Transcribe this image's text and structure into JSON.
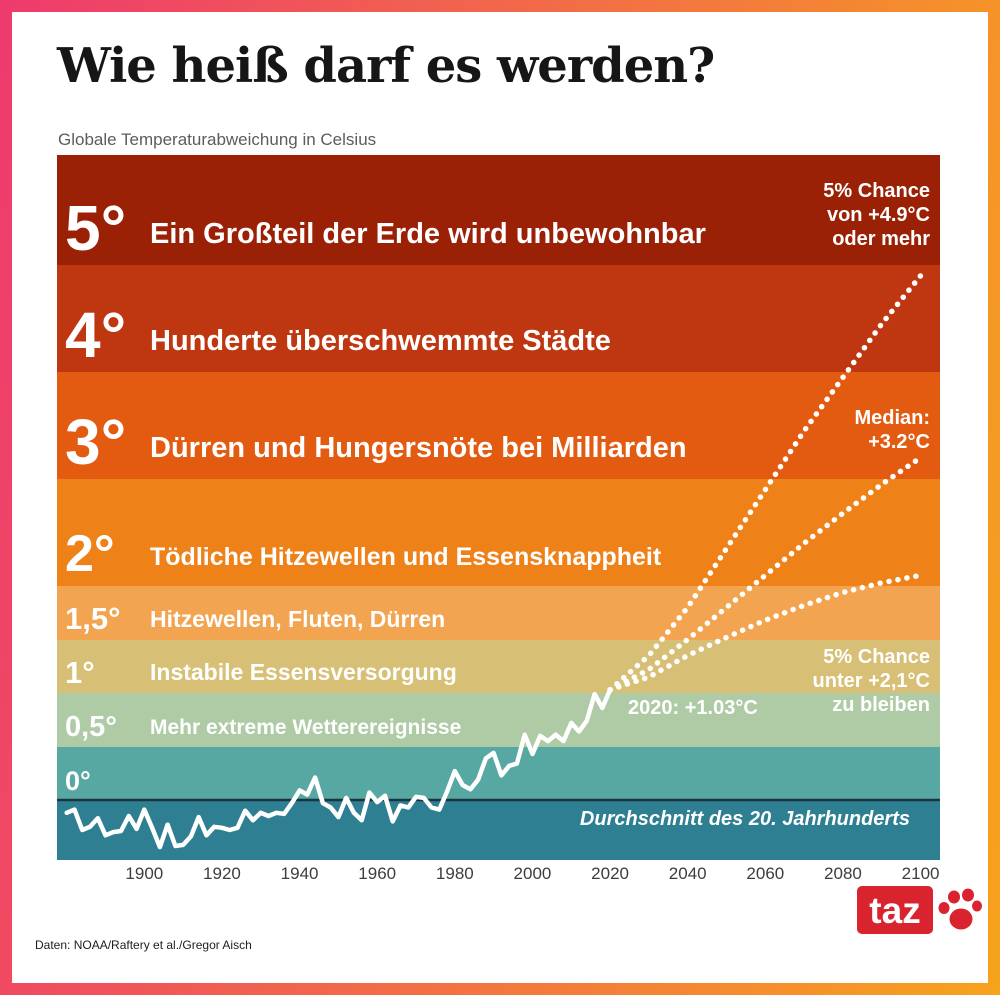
{
  "page": {
    "title": "Wie heiß darf es werden?",
    "subtitle": "Globale Temperaturabweichung in Celsius",
    "source": "Daten: NOAA/Raftery et al./Gregor Aisch",
    "frame_gradient": {
      "left": "#ee3a6e",
      "right": "#f7a31c"
    },
    "logo": {
      "text": "taz",
      "color": "#d9232e",
      "icon": "paw-icon"
    }
  },
  "chart_data": {
    "type": "line",
    "title": "Wie heiß darf es werden?",
    "subtitle": "Globale Temperaturabweichung in Celsius",
    "unit": "°C",
    "x_ticks": [
      1900,
      1920,
      1940,
      1960,
      1980,
      2000,
      2020,
      2040,
      2060,
      2080,
      2100
    ],
    "x_range": [
      1877.5,
      2105
    ],
    "y_range": [
      -0.57,
      6.1
    ],
    "grid": false,
    "legend": "none",
    "zero_line_label": "Durchschnitt des 20. Jahrhunderts",
    "zero_line_color": "#1b3440",
    "bands": [
      {
        "label": "5°",
        "text": "Ein Großteil der Erde wird unbewohnbar",
        "from": 5,
        "to": 6.1,
        "color": "#9B2106"
      },
      {
        "label": "4°",
        "text": "Hunderte überschwemmte Städte",
        "from": 4,
        "to": 5,
        "color": "#BF3710"
      },
      {
        "label": "3°",
        "text": "Dürren und Hungersnöte bei Milliarden",
        "from": 3,
        "to": 4,
        "color": "#E25B10"
      },
      {
        "label": "2°",
        "text": "Tödliche Hitzewellen und Essensknappheit",
        "from": 2,
        "to": 3,
        "color": "#EF8119"
      },
      {
        "label": "1,5°",
        "text": "Hitzewellen, Fluten, Dürren",
        "from": 1.5,
        "to": 2,
        "color": "#F2A451"
      },
      {
        "label": "1°",
        "text": "Instabile Essensversorgung",
        "from": 1,
        "to": 1.5,
        "color": "#D7BF75"
      },
      {
        "label": "0,5°",
        "text": "Mehr extreme Wetterereignisse",
        "from": 0.5,
        "to": 1,
        "color": "#AECBA6"
      },
      {
        "label": "0°",
        "text": "",
        "from": 0,
        "to": 0.5,
        "color": "#57A7A2"
      },
      {
        "label": "",
        "text": "",
        "from": -0.57,
        "to": 0,
        "color": "#2E7F92"
      }
    ],
    "series": [
      {
        "name": "beobachtet-noaa",
        "style": "solid",
        "color": "#ffffff",
        "points": [
          [
            1880,
            -0.12
          ],
          [
            1882,
            -0.09
          ],
          [
            1884,
            -0.28
          ],
          [
            1886,
            -0.25
          ],
          [
            1888,
            -0.17
          ],
          [
            1890,
            -0.33
          ],
          [
            1892,
            -0.3
          ],
          [
            1894,
            -0.29
          ],
          [
            1896,
            -0.15
          ],
          [
            1898,
            -0.27
          ],
          [
            1900,
            -0.09
          ],
          [
            1902,
            -0.26
          ],
          [
            1904,
            -0.44
          ],
          [
            1906,
            -0.23
          ],
          [
            1908,
            -0.43
          ],
          [
            1910,
            -0.42
          ],
          [
            1912,
            -0.34
          ],
          [
            1914,
            -0.16
          ],
          [
            1916,
            -0.33
          ],
          [
            1918,
            -0.25
          ],
          [
            1920,
            -0.26
          ],
          [
            1922,
            -0.28
          ],
          [
            1924,
            -0.26
          ],
          [
            1926,
            -0.1
          ],
          [
            1928,
            -0.19
          ],
          [
            1930,
            -0.12
          ],
          [
            1932,
            -0.15
          ],
          [
            1934,
            -0.12
          ],
          [
            1936,
            -0.13
          ],
          [
            1938,
            -0.03
          ],
          [
            1940,
            0.09
          ],
          [
            1942,
            0.05
          ],
          [
            1944,
            0.21
          ],
          [
            1946,
            -0.03
          ],
          [
            1948,
            -0.07
          ],
          [
            1950,
            -0.16
          ],
          [
            1952,
            0.02
          ],
          [
            1954,
            -0.12
          ],
          [
            1956,
            -0.19
          ],
          [
            1958,
            0.07
          ],
          [
            1960,
            -0.02
          ],
          [
            1962,
            0.04
          ],
          [
            1964,
            -0.2
          ],
          [
            1966,
            -0.05
          ],
          [
            1968,
            -0.07
          ],
          [
            1970,
            0.03
          ],
          [
            1972,
            0.02
          ],
          [
            1974,
            -0.07
          ],
          [
            1976,
            -0.09
          ],
          [
            1978,
            0.08
          ],
          [
            1980,
            0.27
          ],
          [
            1982,
            0.14
          ],
          [
            1984,
            0.1
          ],
          [
            1986,
            0.19
          ],
          [
            1988,
            0.39
          ],
          [
            1990,
            0.44
          ],
          [
            1992,
            0.23
          ],
          [
            1994,
            0.32
          ],
          [
            1996,
            0.34
          ],
          [
            1998,
            0.61
          ],
          [
            2000,
            0.43
          ],
          [
            2002,
            0.6
          ],
          [
            2004,
            0.55
          ],
          [
            2006,
            0.61
          ],
          [
            2008,
            0.55
          ],
          [
            2010,
            0.72
          ],
          [
            2012,
            0.64
          ],
          [
            2014,
            0.74
          ],
          [
            2016,
            0.99
          ],
          [
            2018,
            0.86
          ],
          [
            2020,
            1.03
          ]
        ]
      },
      {
        "name": "projektion-95-perzentil",
        "style": "dotted",
        "color": "#ffffff",
        "points": [
          [
            2020,
            1.03
          ],
          [
            2030,
            1.35
          ],
          [
            2040,
            1.8
          ],
          [
            2050,
            2.35
          ],
          [
            2060,
            2.9
          ],
          [
            2070,
            3.45
          ],
          [
            2080,
            3.95
          ],
          [
            2090,
            4.45
          ],
          [
            2100,
            4.9
          ]
        ]
      },
      {
        "name": "projektion-median",
        "style": "dotted",
        "color": "#ffffff",
        "points": [
          [
            2020,
            1.03
          ],
          [
            2030,
            1.22
          ],
          [
            2040,
            1.5
          ],
          [
            2050,
            1.8
          ],
          [
            2060,
            2.1
          ],
          [
            2070,
            2.4
          ],
          [
            2080,
            2.68
          ],
          [
            2090,
            2.95
          ],
          [
            2100,
            3.2
          ]
        ]
      },
      {
        "name": "projektion-5-perzentil",
        "style": "dotted",
        "color": "#ffffff",
        "points": [
          [
            2020,
            1.03
          ],
          [
            2030,
            1.15
          ],
          [
            2040,
            1.35
          ],
          [
            2050,
            1.52
          ],
          [
            2060,
            1.68
          ],
          [
            2070,
            1.82
          ],
          [
            2080,
            1.94
          ],
          [
            2090,
            2.03
          ],
          [
            2100,
            2.1
          ]
        ]
      }
    ],
    "annotations": {
      "upper": "5% Chance\nvon +4.9°C\noder mehr",
      "median": "Median:\n+3.2°C",
      "lower": "5% Chance\nunter +2,1°C\nzu bleiben",
      "current": "2020: +1.03°C"
    }
  }
}
